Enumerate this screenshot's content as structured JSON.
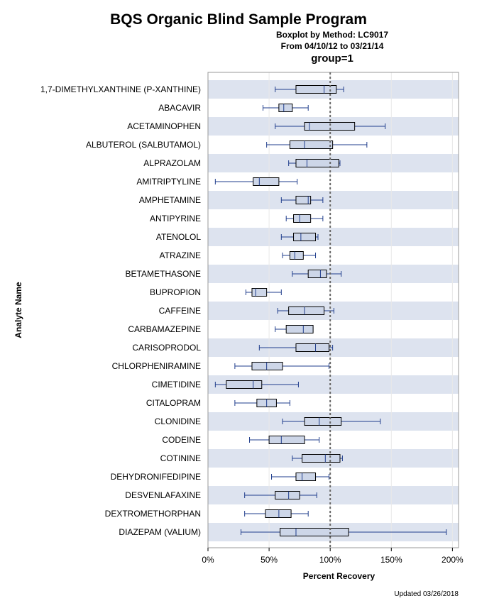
{
  "chart_data": {
    "type": "boxplot",
    "title": "BQS Organic Blind Sample Program",
    "subtitle_lines": [
      "Boxplot by Method: LC9017",
      "From 04/10/12 to 03/21/14",
      "group=1"
    ],
    "xlabel": "Percent Recovery",
    "ylabel": "Analyte Name",
    "xlim": [
      0,
      205
    ],
    "xticks": [
      0,
      50,
      100,
      150,
      200
    ],
    "xtick_labels": [
      "0%",
      "50%",
      "100%",
      "150%",
      "200%"
    ],
    "reference_line": 100,
    "categories": [
      "1,7-DIMETHYLXANTHINE (P-XANTHINE)",
      "ABACAVIR",
      "ACETAMINOPHEN",
      "ALBUTEROL (SALBUTAMOL)",
      "ALPRAZOLAM",
      "AMITRIPTYLINE",
      "AMPHETAMINE",
      "ANTIPYRINE",
      "ATENOLOL",
      "ATRAZINE",
      "BETAMETHASONE",
      "BUPROPION",
      "CAFFEINE",
      "CARBAMAZEPINE",
      "CARISOPRODOL",
      "CHLORPHENIRAMINE",
      "CIMETIDINE",
      "CITALOPRAM",
      "CLONIDINE",
      "CODEINE",
      "COTININE",
      "DEHYDRONIFEDIPINE",
      "DESVENLAFAXINE",
      "DEXTROMETHORPHAN",
      "DIAZEPAM (VALIUM)"
    ],
    "boxes": [
      {
        "min": 55,
        "q1": 72,
        "median": 95,
        "q3": 105,
        "max": 111
      },
      {
        "min": 45,
        "q1": 58,
        "median": 62,
        "q3": 69,
        "max": 82
      },
      {
        "min": 55,
        "q1": 79,
        "median": 83,
        "q3": 120,
        "max": 145
      },
      {
        "min": 48,
        "q1": 67,
        "median": 79,
        "q3": 102,
        "max": 130
      },
      {
        "min": 66,
        "q1": 72,
        "median": 81,
        "q3": 107,
        "max": 108
      },
      {
        "min": 6,
        "q1": 37,
        "median": 42,
        "q3": 58,
        "max": 73
      },
      {
        "min": 60,
        "q1": 72,
        "median": 82,
        "q3": 84,
        "max": 94
      },
      {
        "min": 64,
        "q1": 70,
        "median": 75,
        "q3": 84,
        "max": 94
      },
      {
        "min": 60,
        "q1": 70,
        "median": 76,
        "q3": 88,
        "max": 90
      },
      {
        "min": 61,
        "q1": 67,
        "median": 71,
        "q3": 78,
        "max": 88
      },
      {
        "min": 69,
        "q1": 82,
        "median": 92,
        "q3": 97,
        "max": 109
      },
      {
        "min": 31,
        "q1": 36,
        "median": 39,
        "q3": 48,
        "max": 60
      },
      {
        "min": 57,
        "q1": 66,
        "median": 79,
        "q3": 95,
        "max": 103
      },
      {
        "min": 55,
        "q1": 64,
        "median": 78,
        "q3": 86,
        "max": 86
      },
      {
        "min": 42,
        "q1": 72,
        "median": 88,
        "q3": 99,
        "max": 102
      },
      {
        "min": 22,
        "q1": 36,
        "median": 48,
        "q3": 61,
        "max": 99
      },
      {
        "min": 6,
        "q1": 15,
        "median": 37,
        "q3": 44,
        "max": 74
      },
      {
        "min": 22,
        "q1": 40,
        "median": 48,
        "q3": 56,
        "max": 67
      },
      {
        "min": 61,
        "q1": 79,
        "median": 91,
        "q3": 109,
        "max": 141
      },
      {
        "min": 34,
        "q1": 50,
        "median": 60,
        "q3": 79,
        "max": 91
      },
      {
        "min": 69,
        "q1": 77,
        "median": 96,
        "q3": 108,
        "max": 110
      },
      {
        "min": 52,
        "q1": 72,
        "median": 77,
        "q3": 88,
        "max": 99
      },
      {
        "min": 30,
        "q1": 55,
        "median": 66,
        "q3": 75,
        "max": 89
      },
      {
        "min": 30,
        "q1": 47,
        "median": 58,
        "q3": 68,
        "max": 82
      },
      {
        "min": 27,
        "q1": 59,
        "median": 72,
        "q3": 115,
        "max": 195
      }
    ],
    "colors": {
      "band": "#dde3ef",
      "box_fill": "#cdd6e8",
      "box_stroke": "#000000",
      "whisker": "#1f3d8c",
      "refline": "#666666"
    }
  },
  "footer": "Updated 03/26/2018"
}
